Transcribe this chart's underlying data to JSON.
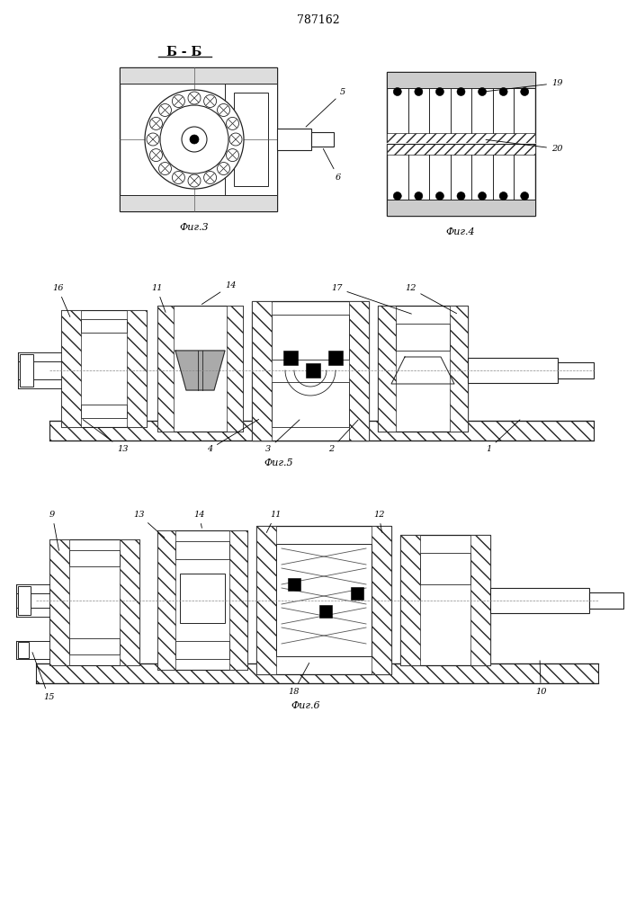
{
  "title": "787162",
  "bg": "#f5f5f0",
  "lc": "#222222",
  "fig3_caption": "Фиг.3",
  "fig4_caption": "Фиг.4",
  "fig5_caption": "Фиг.5",
  "fig6_caption": "Фиг.6"
}
